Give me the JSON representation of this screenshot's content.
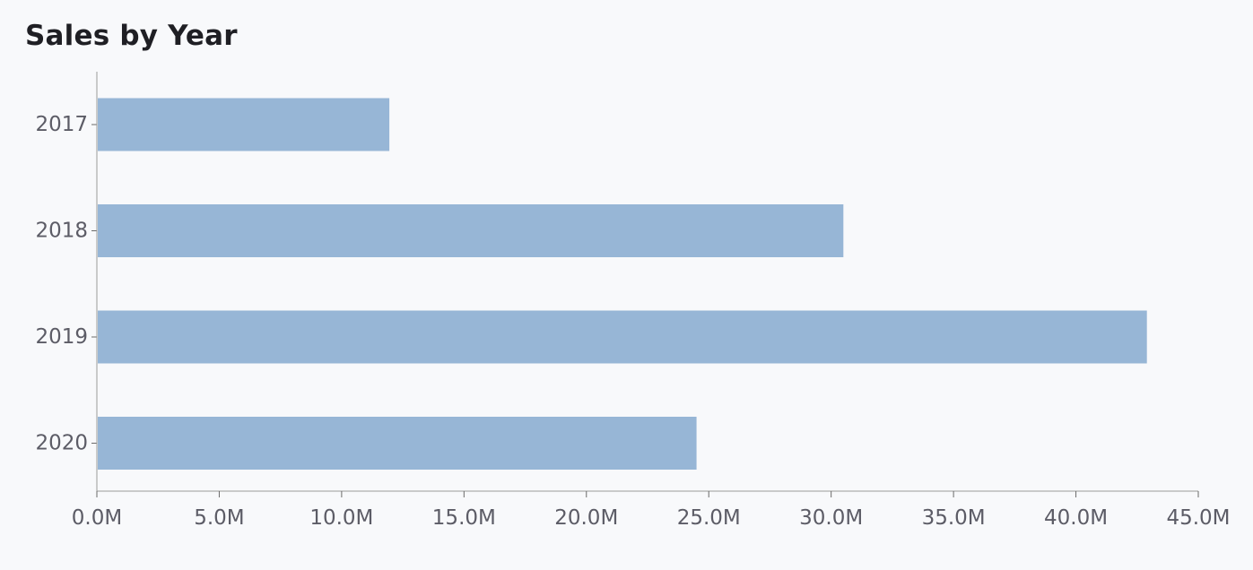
{
  "chart_data": {
    "type": "bar",
    "orientation": "horizontal",
    "title": "Sales by Year",
    "categories": [
      "2017",
      "2018",
      "2019",
      "2020"
    ],
    "values": [
      11.95,
      30.5,
      42.9,
      24.5
    ],
    "xlim": [
      0,
      45
    ],
    "xticks": [
      0,
      5,
      10,
      15,
      20,
      25,
      30,
      35,
      40,
      45
    ],
    "xtick_labels": [
      "0.0M",
      "5.0M",
      "10.0M",
      "15.0M",
      "20.0M",
      "25.0M",
      "30.0M",
      "35.0M",
      "40.0M",
      "45.0M"
    ],
    "bar_color": "#97b6d6",
    "grid": false,
    "legend": "none"
  }
}
